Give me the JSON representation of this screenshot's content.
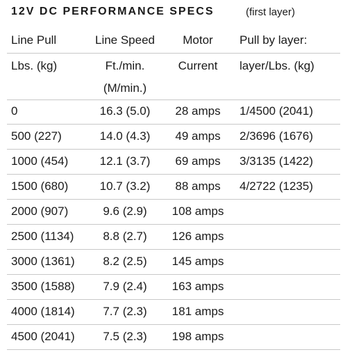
{
  "header": {
    "title": "12V DC PERFORMANCE SPECS",
    "subtitle": "(first layer)"
  },
  "table": {
    "columns": [
      [
        "Line Pull",
        "Lbs. (kg)"
      ],
      [
        "Line Speed",
        "Ft./min.",
        "(M/min.)"
      ],
      [
        "Motor",
        "Current"
      ],
      [
        "Pull by layer:",
        "layer/Lbs. (kg)"
      ]
    ],
    "rows": [
      [
        "0",
        "16.3 (5.0)",
        "28 amps",
        "1/4500 (2041)"
      ],
      [
        "500 (227)",
        "14.0 (4.3)",
        "49 amps",
        "2/3696 (1676)"
      ],
      [
        "1000 (454)",
        "12.1 (3.7)",
        "69 amps",
        "3/3135 (1422)"
      ],
      [
        "1500 (680)",
        "10.7 (3.2)",
        "88 amps",
        "4/2722 (1235)"
      ],
      [
        "2000 (907)",
        "9.6 (2.9)",
        "108 amps"
      ],
      [
        "2500 (1134)",
        "8.8 (2.7)",
        "126 amps"
      ],
      [
        "3000 (1361)",
        "8.2 (2.5)",
        "145 amps"
      ],
      [
        "3500 (1588)",
        "7.9 (2.4)",
        "163 amps"
      ],
      [
        "4000 (1814)",
        "7.7 (2.3)",
        "181 amps"
      ],
      [
        "4500 (2041)",
        "7.5 (2.3)",
        "198 amps"
      ]
    ]
  }
}
